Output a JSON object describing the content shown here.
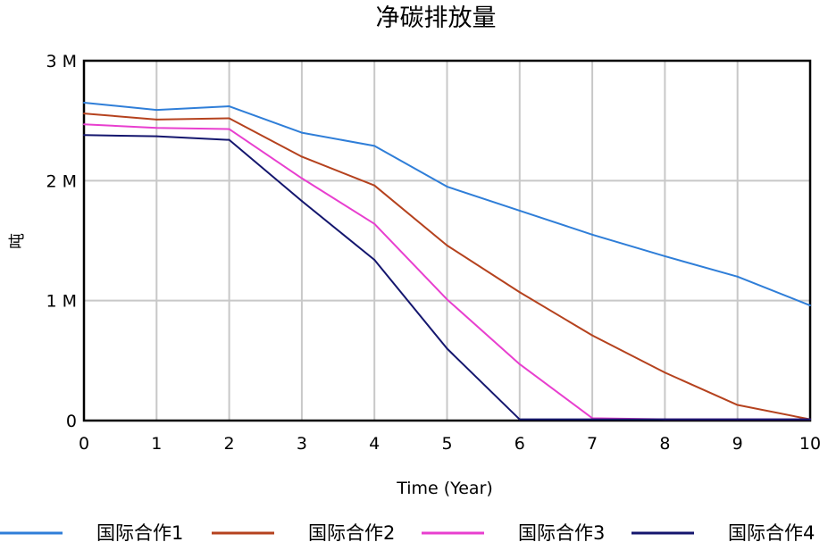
{
  "chart_data": {
    "type": "line",
    "title": "净碳排放量",
    "xlabel": "Time (Year)",
    "ylabel": "吨",
    "xlim": [
      0,
      10
    ],
    "ylim": [
      0,
      3000000
    ],
    "x": [
      0,
      1,
      2,
      3,
      4,
      5,
      6,
      7,
      8,
      9,
      10
    ],
    "x_ticks": [
      "0",
      "1",
      "2",
      "3",
      "4",
      "5",
      "6",
      "7",
      "8",
      "9",
      "10"
    ],
    "y_ticks": [
      {
        "value": 0,
        "label": "0"
      },
      {
        "value": 1000000,
        "label": "1 M"
      },
      {
        "value": 2000000,
        "label": "2 M"
      },
      {
        "value": 3000000,
        "label": "3 M"
      }
    ],
    "grid": true,
    "legend_position": "bottom",
    "series": [
      {
        "name": "国际合作1",
        "color": "#2f7ed8",
        "values": [
          2650000,
          2590000,
          2620000,
          2400000,
          2290000,
          1950000,
          1750000,
          1550000,
          1370000,
          1200000,
          960000
        ]
      },
      {
        "name": "国际合作2",
        "color": "#b5421e",
        "values": [
          2560000,
          2510000,
          2520000,
          2200000,
          1960000,
          1460000,
          1070000,
          710000,
          400000,
          130000,
          10000
        ]
      },
      {
        "name": "国际合作3",
        "color": "#e83fcf",
        "values": [
          2470000,
          2440000,
          2430000,
          2020000,
          1640000,
          1010000,
          470000,
          20000,
          10000,
          10000,
          10000
        ]
      },
      {
        "name": "国际合作4",
        "color": "#14166e",
        "values": [
          2380000,
          2370000,
          2340000,
          1830000,
          1340000,
          600000,
          10000,
          10000,
          10000,
          10000,
          10000
        ]
      }
    ]
  }
}
